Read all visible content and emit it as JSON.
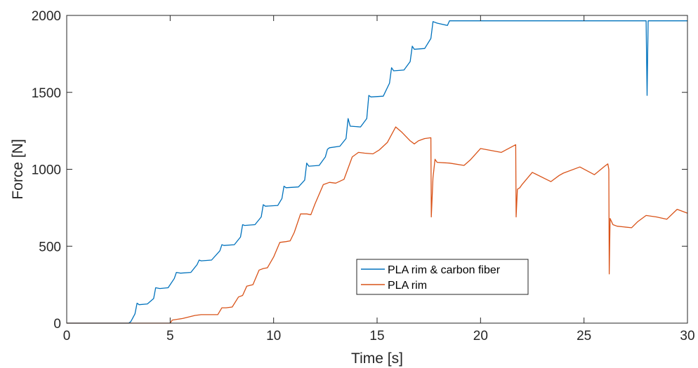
{
  "chart_data": {
    "type": "line",
    "xlabel": "Time [s]",
    "ylabel": "Force [N]",
    "xlim": [
      0,
      30
    ],
    "ylim": [
      0,
      2000
    ],
    "xticks": [
      0,
      5,
      10,
      15,
      20,
      25,
      30
    ],
    "yticks": [
      0,
      500,
      1000,
      1500,
      2000
    ],
    "xtick_labels": [
      "0",
      "5",
      "10",
      "15",
      "20",
      "25",
      "30"
    ],
    "ytick_labels": [
      "0",
      "500",
      "1000",
      "1500",
      "2000"
    ],
    "grid": false,
    "legend_position": "center-right",
    "series": [
      {
        "name": "PLA rim & carbon fiber",
        "color": "#0072BD",
        "x": [
          0,
          3.0,
          3.1,
          3.3,
          3.4,
          3.5,
          3.9,
          4.2,
          4.3,
          4.5,
          4.9,
          5.2,
          5.3,
          5.5,
          6.0,
          6.3,
          6.4,
          6.5,
          7.0,
          7.4,
          7.5,
          7.6,
          8.1,
          8.4,
          8.5,
          8.6,
          9.1,
          9.4,
          9.5,
          9.6,
          10.2,
          10.4,
          10.5,
          10.6,
          11.2,
          11.5,
          11.6,
          11.7,
          12.2,
          12.5,
          12.6,
          12.7,
          13.2,
          13.5,
          13.6,
          13.7,
          14.2,
          14.5,
          14.6,
          14.7,
          15.3,
          15.6,
          15.7,
          15.8,
          16.3,
          16.6,
          16.7,
          16.8,
          17.3,
          17.6,
          17.7,
          17.9,
          18.4,
          18.5,
          27.95,
          28.0,
          28.05,
          28.1,
          30.0
        ],
        "y": [
          0,
          0,
          10,
          60,
          130,
          120,
          125,
          160,
          230,
          225,
          230,
          290,
          330,
          325,
          330,
          380,
          410,
          405,
          410,
          470,
          510,
          505,
          510,
          560,
          640,
          635,
          640,
          690,
          770,
          760,
          765,
          810,
          890,
          880,
          885,
          930,
          1040,
          1020,
          1025,
          1080,
          1130,
          1140,
          1150,
          1200,
          1330,
          1280,
          1275,
          1330,
          1480,
          1470,
          1475,
          1560,
          1660,
          1640,
          1645,
          1700,
          1800,
          1780,
          1785,
          1850,
          1960,
          1950,
          1935,
          1965,
          1965,
          1965,
          1480,
          1965,
          1965
        ]
      },
      {
        "name": "PLA rim",
        "color": "#D95319",
        "x": [
          0,
          5.0,
          5.1,
          5.6,
          6.2,
          6.5,
          7.3,
          7.5,
          7.7,
          8.0,
          8.3,
          8.5,
          8.7,
          9.0,
          9.3,
          9.5,
          9.7,
          10.0,
          10.3,
          10.6,
          10.8,
          11.0,
          11.3,
          11.6,
          11.8,
          12.0,
          12.4,
          12.7,
          13.0,
          13.4,
          13.8,
          14.1,
          14.4,
          14.8,
          15.1,
          15.5,
          15.9,
          16.2,
          16.6,
          16.8,
          17.0,
          17.3,
          17.6,
          17.62,
          17.7,
          17.8,
          17.9,
          18.5,
          19.2,
          19.5,
          20.0,
          21.0,
          21.7,
          21.72,
          21.78,
          21.9,
          22.0,
          22.5,
          23.4,
          23.8,
          24.0,
          24.8,
          25.5,
          26.0,
          26.15,
          26.2,
          26.22,
          26.26,
          26.4,
          26.6,
          27.3,
          27.6,
          28.0,
          28.5,
          29.0,
          29.5,
          30.0
        ],
        "y": [
          0,
          0,
          20,
          30,
          50,
          55,
          55,
          100,
          100,
          105,
          170,
          180,
          240,
          250,
          345,
          355,
          360,
          430,
          525,
          530,
          535,
          590,
          710,
          710,
          705,
          775,
          900,
          915,
          910,
          935,
          1080,
          1110,
          1105,
          1100,
          1125,
          1175,
          1275,
          1240,
          1185,
          1165,
          1185,
          1200,
          1205,
          690,
          945,
          1065,
          1045,
          1040,
          1025,
          1060,
          1135,
          1110,
          1160,
          690,
          870,
          880,
          900,
          980,
          920,
          960,
          975,
          1015,
          965,
          1020,
          1035,
          1000,
          320,
          680,
          640,
          630,
          620,
          660,
          700,
          690,
          675,
          740,
          715
        ]
      }
    ]
  }
}
